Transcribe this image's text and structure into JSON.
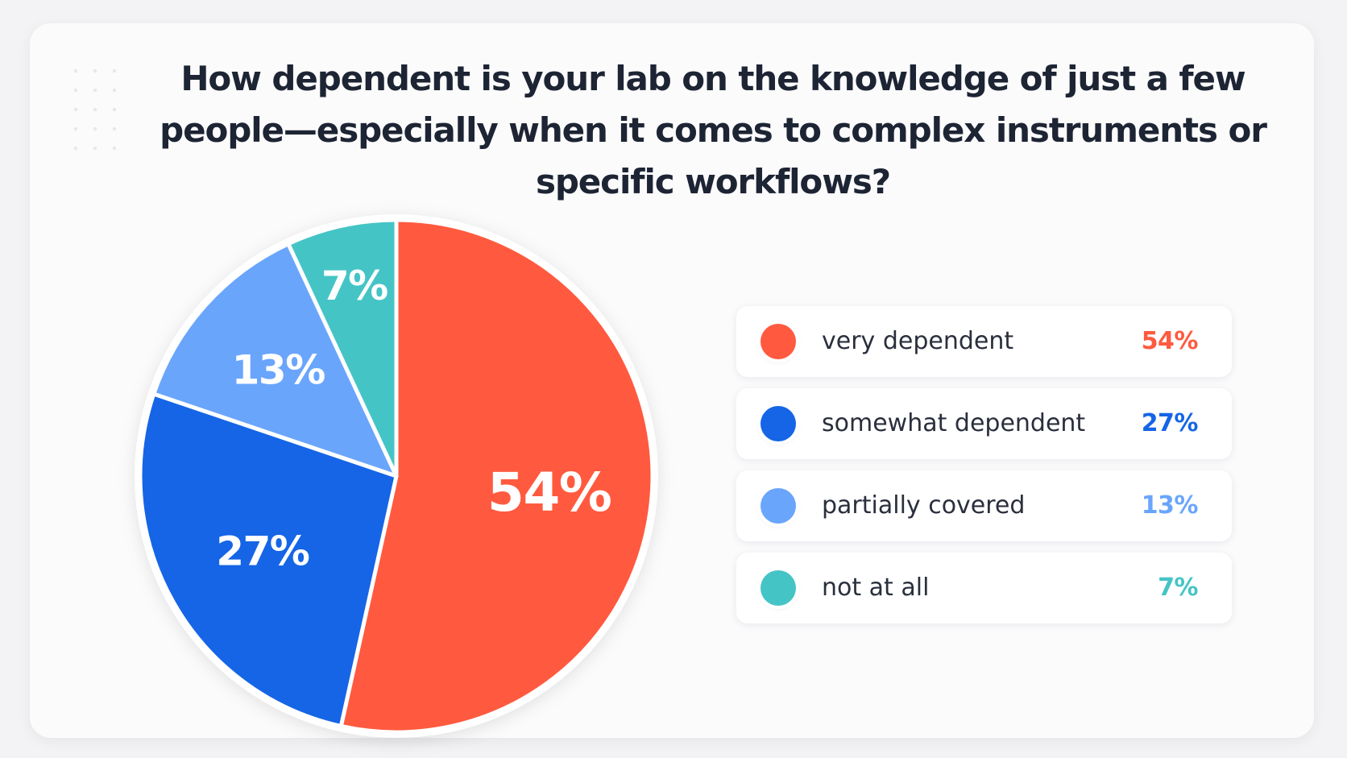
{
  "chart_data": {
    "type": "pie",
    "title": "How dependent is your lab on the knowledge of just a few people—especially when it comes to complex instruments or specific workflows?",
    "slices": [
      {
        "label": "very dependent",
        "value": 54,
        "display": "54%",
        "color": "#ff5a3f"
      },
      {
        "label": "somewhat dependent",
        "value": 27,
        "display": "27%",
        "color": "#1565e6"
      },
      {
        "label": "partially covered",
        "value": 13,
        "display": "13%",
        "color": "#6aa5fc"
      },
      {
        "label": "not at all",
        "value": 7,
        "display": "7%",
        "color": "#45c4c6"
      }
    ],
    "start": "top",
    "direction": "clockwise",
    "legend": "right"
  }
}
